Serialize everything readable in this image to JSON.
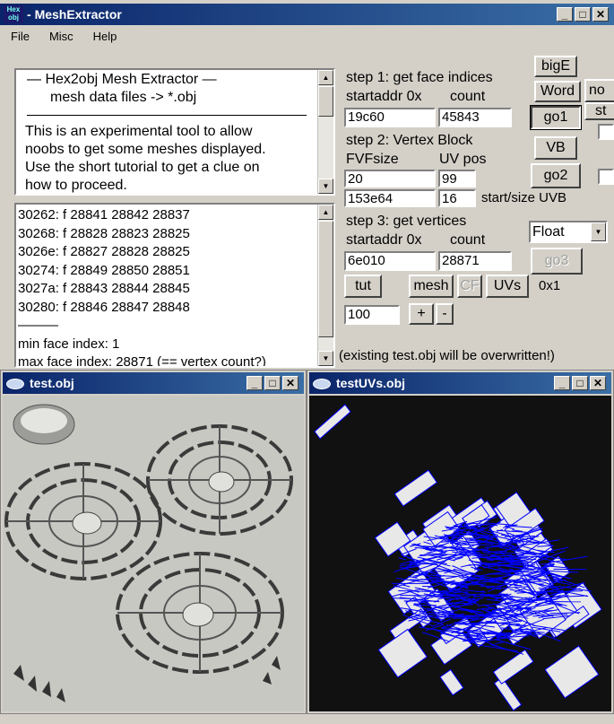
{
  "window": {
    "title": "MeshExtractor",
    "title_prefix": "-",
    "icon_text": "Hex obj",
    "min_label": "_",
    "max_label": "□",
    "close_label": "✕"
  },
  "menu": {
    "items": [
      "File",
      "Misc",
      "Help"
    ]
  },
  "info": {
    "lines": [
      "—   Hex2obj Mesh Extractor   —",
      "mesh data files -> *.obj",
      "This is an experimental tool to allow",
      "noobs to get some meshes displayed.",
      "Use the short tutorial to get a clue on",
      "how to proceed."
    ]
  },
  "log": {
    "lines": [
      "30262: f  28841 28842 28837",
      "30268: f  28828 28823 28825",
      "3026e: f  28827 28828 28825",
      "30274: f  28849 28850 28851",
      "3027a: f  28843 28844 28845",
      "30280: f  28846 28847 28848",
      "———",
      "min face index: 1",
      "max face index: 28871 (== vertex count?)"
    ]
  },
  "step1": {
    "title": "step 1: get face indices",
    "startaddr_label": "startaddr 0x",
    "count_label": "count",
    "startaddr_value": "19c60",
    "count_value": "45843"
  },
  "step2": {
    "title": "step 2: Vertex Block",
    "fvfsize_label": "FVFsize",
    "uvpos_label": "UV pos",
    "fvfsize_value": "20",
    "uvpos_value": "99",
    "uvb_start_value": "153e64",
    "uvb_size_value": "16",
    "uvb_label": "start/size UVB"
  },
  "step3": {
    "title": "step 3: get vertices",
    "startaddr_label": "startaddr 0x",
    "count_label": "count",
    "startaddr_value": "6e010",
    "count_value": "28871"
  },
  "buttons": {
    "bigE": "bigE",
    "word": "Word",
    "go1": "go1",
    "vb": "VB",
    "go2": "go2",
    "go3": "go3",
    "tut": "tut",
    "mesh": "mesh",
    "cf": "CF",
    "uvs": "UVs",
    "plus": "+",
    "minus": "-",
    "no_partial": "no",
    "st_partial": "st"
  },
  "format_select": {
    "value": "Float"
  },
  "hex_label": "0x1",
  "scale_value": "100",
  "status": "(existing test.obj will be overwritten!)",
  "viewer_obj": {
    "title": "test.obj"
  },
  "viewer_uv": {
    "title": "testUVs.obj"
  },
  "colors": {
    "titlebar": "#0a246a",
    "uv_lines": "#0000ff",
    "uv_bg": "#111111",
    "mesh_bg": "#c8c8c3"
  }
}
